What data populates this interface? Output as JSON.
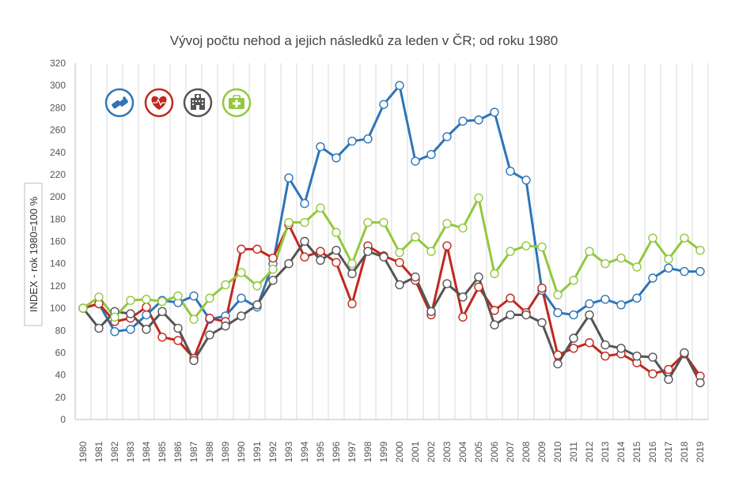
{
  "chart_data": {
    "type": "line",
    "title": "Vývoj počtu nehod a jejich následků za leden v ČR; od roku 1980",
    "ylabel": "INDEX - rok 1980=100 %",
    "xlabel": "",
    "ylim": [
      0,
      320
    ],
    "yticks": [
      0,
      20,
      40,
      60,
      80,
      100,
      120,
      140,
      160,
      180,
      200,
      220,
      240,
      260,
      280,
      300,
      320
    ],
    "grid": "vertical",
    "legend": "icons top-left",
    "categories": [
      "1980",
      "1981",
      "1982",
      "1983",
      "1984",
      "1985",
      "1986",
      "1987",
      "1988",
      "1989",
      "1990",
      "1991",
      "1992",
      "1993",
      "1994",
      "1995",
      "1996",
      "1997",
      "1998",
      "1999",
      "2000",
      "2001",
      "2002",
      "2003",
      "2004",
      "2005",
      "2006",
      "2007",
      "2008",
      "2009",
      "2010",
      "2011",
      "2012",
      "2013",
      "2014",
      "2015",
      "2016",
      "2017",
      "2018",
      "2019"
    ],
    "series": [
      {
        "icon": "crash-icon",
        "color": "#2e75b6",
        "values": [
          100,
          104,
          79,
          81,
          94,
          107,
          105,
          111,
          90,
          93,
          109,
          101,
          140,
          217,
          194,
          245,
          235,
          250,
          252,
          283,
          300,
          232,
          238,
          254,
          268,
          269,
          276,
          223,
          215,
          116,
          96,
          94,
          104,
          108,
          103,
          109,
          127,
          136,
          133,
          133
        ]
      },
      {
        "icon": "heart-icon",
        "color": "#c0281e",
        "values": [
          100,
          104,
          88,
          91,
          101,
          74,
          71,
          55,
          91,
          88,
          153,
          153,
          145,
          175,
          146,
          151,
          141,
          104,
          156,
          147,
          141,
          125,
          94,
          156,
          92,
          119,
          98,
          109,
          96,
          118,
          58,
          64,
          69,
          57,
          59,
          51,
          41,
          45,
          59,
          39
        ]
      },
      {
        "icon": "hospital-icon",
        "color": "#555555",
        "values": [
          100,
          82,
          97,
          95,
          81,
          97,
          82,
          53,
          76,
          84,
          93,
          103,
          125,
          140,
          160,
          143,
          152,
          131,
          151,
          146,
          121,
          128,
          97,
          122,
          110,
          128,
          85,
          94,
          94,
          87,
          50,
          73,
          94,
          67,
          64,
          57,
          56,
          36,
          60,
          33
        ]
      },
      {
        "icon": "first-aid-icon",
        "color": "#92c83e",
        "values": [
          100,
          110,
          92,
          107,
          108,
          106,
          111,
          90,
          109,
          121,
          132,
          120,
          135,
          177,
          177,
          190,
          168,
          140,
          177,
          177,
          150,
          164,
          151,
          176,
          172,
          199,
          131,
          151,
          156,
          155,
          112,
          125,
          151,
          140,
          145,
          137,
          163,
          144,
          163,
          152
        ]
      }
    ]
  }
}
